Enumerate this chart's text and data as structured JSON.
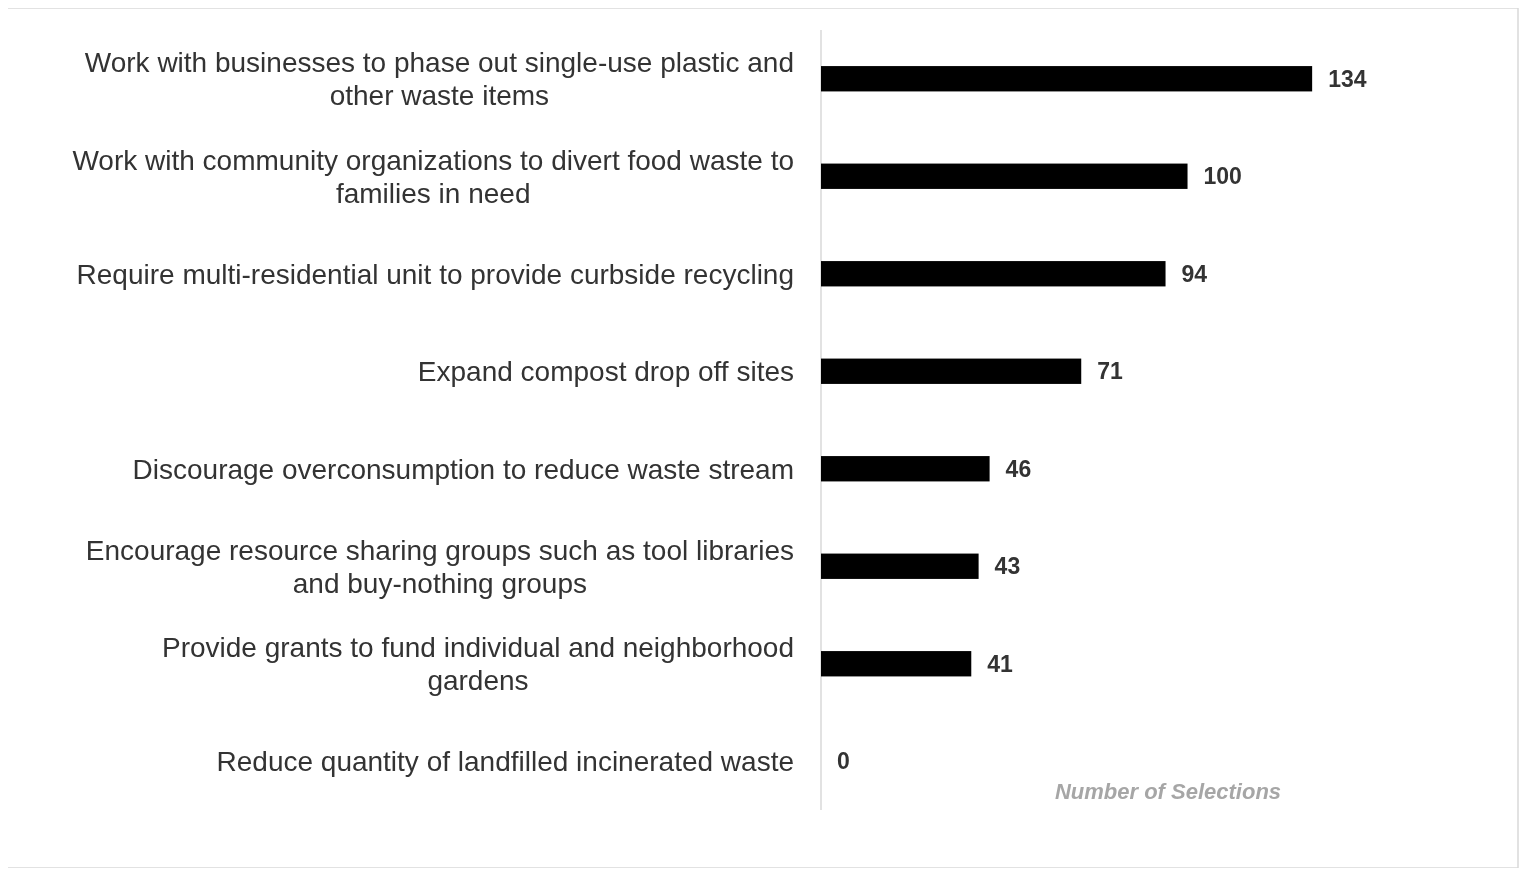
{
  "chart_data": {
    "type": "bar",
    "orientation": "horizontal",
    "xlabel": "Number of Selections",
    "categories": [
      "Work with businesses to phase out single-use plastic and other waste items",
      "Work with community organizations to divert food waste to families in need",
      "Require multi-residential unit to provide curbside recycling",
      "Expand compost drop off sites",
      "Discourage overconsumption to reduce waste stream",
      "Encourage resource sharing groups such as tool libraries and buy-nothing groups",
      "Provide grants to fund individual and neighborhood gardens",
      "Reduce quantity of landfilled incinerated waste"
    ],
    "values": [
      134,
      100,
      94,
      71,
      46,
      43,
      41,
      0
    ],
    "color": "#000000",
    "data_labels": true
  }
}
